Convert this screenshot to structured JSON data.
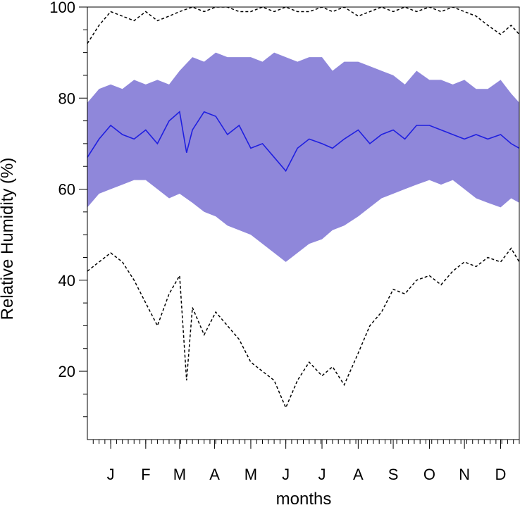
{
  "chart_data": {
    "type": "line",
    "title": "",
    "xlabel": "months",
    "ylabel": "Relative Humidity (%)",
    "ylim": [
      5,
      100
    ],
    "yticks": [
      20,
      40,
      60,
      80,
      100
    ],
    "x_unit": "day of year",
    "xlim": [
      -5,
      365
    ],
    "xticks": [
      {
        "label": "J",
        "day": 15
      },
      {
        "label": "F",
        "day": 45
      },
      {
        "label": "M",
        "day": 74
      },
      {
        "label": "A",
        "day": 104
      },
      {
        "label": "M",
        "day": 135
      },
      {
        "label": "J",
        "day": 165
      },
      {
        "label": "J",
        "day": 196
      },
      {
        "label": "A",
        "day": 227
      },
      {
        "label": "S",
        "day": 257
      },
      {
        "label": "O",
        "day": 288
      },
      {
        "label": "N",
        "day": 318
      },
      {
        "label": "D",
        "day": 349
      }
    ],
    "grid": false,
    "legend": "none",
    "colors": {
      "band": "#8f87da",
      "mean": "#1f1fe0",
      "extremes": "#000000"
    },
    "series": [
      {
        "role": "band-upper",
        "x": [
          -5,
          5,
          15,
          25,
          35,
          45,
          55,
          65,
          74,
          85,
          95,
          105,
          115,
          125,
          135,
          145,
          155,
          165,
          175,
          185,
          196,
          205,
          215,
          227,
          237,
          247,
          257,
          267,
          277,
          288,
          298,
          308,
          318,
          328,
          338,
          349,
          358,
          365
        ],
        "values": [
          79,
          82,
          83,
          82,
          84,
          83,
          84,
          83,
          86,
          89,
          88,
          90,
          89,
          89,
          89,
          88,
          90,
          89,
          88,
          89,
          89,
          86,
          88,
          88,
          87,
          86,
          85,
          83,
          86,
          84,
          84,
          83,
          84,
          82,
          82,
          84,
          81,
          79
        ]
      },
      {
        "role": "band-lower",
        "x": [
          -5,
          5,
          15,
          25,
          35,
          45,
          55,
          65,
          74,
          85,
          95,
          105,
          115,
          125,
          135,
          145,
          155,
          165,
          175,
          185,
          196,
          205,
          215,
          227,
          237,
          247,
          257,
          267,
          277,
          288,
          298,
          308,
          318,
          328,
          338,
          349,
          358,
          365
        ],
        "values": [
          56,
          59,
          60,
          61,
          62,
          62,
          60,
          58,
          59,
          57,
          55,
          54,
          52,
          51,
          50,
          48,
          46,
          44,
          46,
          48,
          49,
          51,
          52,
          54,
          56,
          58,
          59,
          60,
          61,
          62,
          61,
          62,
          60,
          58,
          57,
          56,
          58,
          57
        ]
      },
      {
        "role": "mean",
        "x": [
          -5,
          5,
          15,
          25,
          35,
          45,
          55,
          65,
          74,
          80,
          85,
          95,
          105,
          115,
          125,
          135,
          145,
          155,
          165,
          175,
          185,
          196,
          205,
          215,
          227,
          237,
          247,
          257,
          267,
          277,
          288,
          298,
          308,
          318,
          328,
          338,
          349,
          358,
          365
        ],
        "values": [
          67,
          71,
          74,
          72,
          71,
          73,
          70,
          75,
          77,
          68,
          73,
          77,
          76,
          72,
          74,
          69,
          70,
          67,
          64,
          69,
          71,
          70,
          69,
          71,
          73,
          70,
          72,
          73,
          71,
          74,
          74,
          73,
          72,
          71,
          72,
          71,
          72,
          70,
          69
        ]
      },
      {
        "role": "max",
        "x": [
          -5,
          5,
          15,
          25,
          35,
          45,
          55,
          65,
          74,
          85,
          95,
          105,
          115,
          125,
          135,
          145,
          155,
          165,
          175,
          185,
          196,
          205,
          215,
          227,
          237,
          247,
          257,
          267,
          277,
          288,
          298,
          308,
          318,
          328,
          338,
          349,
          358,
          365
        ],
        "values": [
          92,
          96,
          99,
          98,
          97,
          99,
          97,
          98,
          99,
          100,
          99,
          100,
          100,
          99,
          99,
          100,
          99,
          100,
          99,
          99,
          100,
          99,
          100,
          98,
          99,
          100,
          99,
          100,
          99,
          100,
          99,
          100,
          99,
          98,
          96,
          94,
          96,
          94
        ]
      },
      {
        "role": "min",
        "x": [
          -5,
          5,
          15,
          25,
          35,
          45,
          55,
          65,
          74,
          80,
          85,
          95,
          105,
          115,
          125,
          135,
          145,
          155,
          165,
          175,
          185,
          196,
          205,
          215,
          227,
          237,
          247,
          257,
          267,
          277,
          288,
          298,
          308,
          318,
          328,
          338,
          349,
          358,
          365
        ],
        "values": [
          42,
          44,
          46,
          44,
          40,
          35,
          30,
          37,
          41,
          18,
          34,
          28,
          33,
          30,
          27,
          22,
          20,
          18,
          12,
          18,
          22,
          19,
          21,
          17,
          24,
          30,
          33,
          38,
          37,
          40,
          41,
          39,
          42,
          44,
          43,
          45,
          44,
          47,
          44
        ]
      }
    ]
  }
}
